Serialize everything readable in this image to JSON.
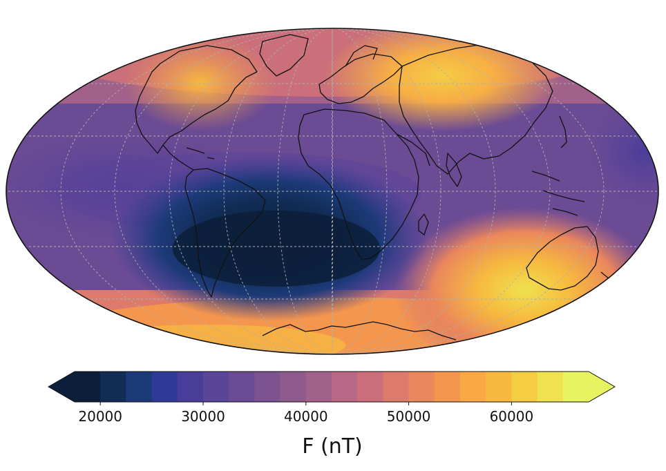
{
  "map": {
    "projection": "mollweide",
    "graticule": "dashed gray",
    "coastlines": "black outline",
    "anomaly": "South Atlantic minimum",
    "colormap": [
      "#0c1f3a",
      "#112c55",
      "#1d3a78",
      "#2f3a96",
      "#4a3d9a",
      "#5b4597",
      "#6b4b94",
      "#7d5291",
      "#8f5a8e",
      "#a1618a",
      "#b66884",
      "#cb707a",
      "#dc7a6c",
      "#ea875c",
      "#f5964e",
      "#f9a845",
      "#f7ba3f",
      "#f4cd43",
      "#efe14f",
      "#e6f55f"
    ]
  },
  "colorbar": {
    "min": 17500,
    "max": 67500,
    "step": 2500,
    "extend": "both",
    "ticks": [
      "20000",
      "30000",
      "40000",
      "50000",
      "60000"
    ],
    "tick_values": [
      20000,
      30000,
      40000,
      50000,
      60000
    ],
    "label": "F (nT)"
  }
}
